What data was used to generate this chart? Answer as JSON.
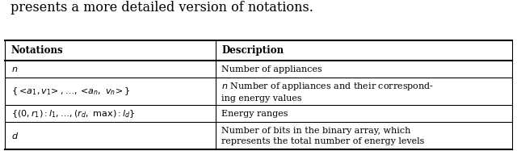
{
  "title": "presents a more detailed version of notations.",
  "headers": [
    "Notations",
    "Description"
  ],
  "rows_left": [
    "$n$",
    "$\\{<\\!a_1,v_1\\!>, \\ldots, <\\!a_n,\\ v_n\\!>\\}$",
    "$\\{(0,r_1){:}l_1, \\ldots, (r_d,\\ \\mathrm{max}){:}l_d\\}$",
    "$d$"
  ],
  "rows_right": [
    "Number of appliances",
    "$n$ Number of appliances and their correspond-\ning energy values",
    "Energy ranges",
    "Number of bits in the binary array, which\nrepresents the total number of energy levels"
  ],
  "col_split": 0.415,
  "font_size": 8.0,
  "title_font_size": 11.5,
  "header_font_size": 8.5
}
